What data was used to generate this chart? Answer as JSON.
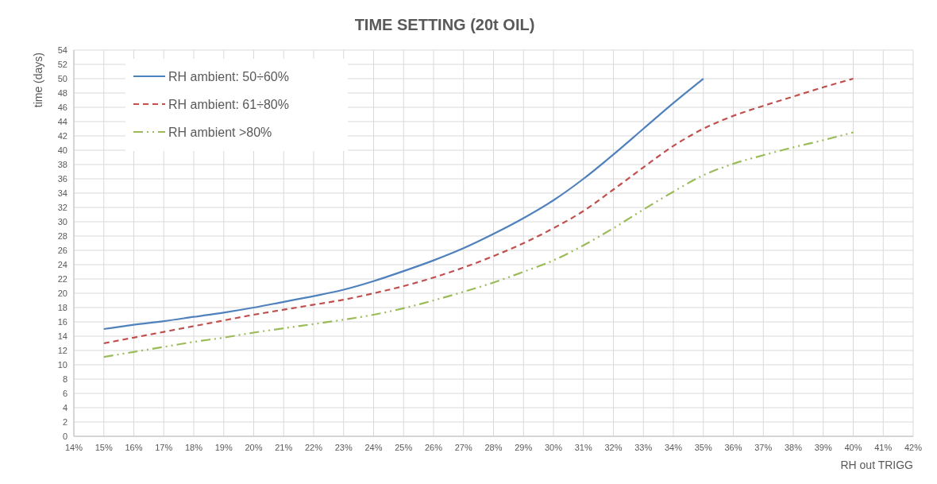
{
  "chart_data": {
    "type": "line",
    "title": "TIME SETTING (20t OIL)",
    "xlabel": "RH out TRIGG",
    "ylabel": "time (days)",
    "xlim": [
      14,
      42
    ],
    "xticks": [
      {
        "value": 14,
        "label": "14%"
      },
      {
        "value": 15,
        "label": "15%"
      },
      {
        "value": 16,
        "label": "16%"
      },
      {
        "value": 17,
        "label": "17%"
      },
      {
        "value": 18,
        "label": "18%"
      },
      {
        "value": 19,
        "label": "19%"
      },
      {
        "value": 20,
        "label": "20%"
      },
      {
        "value": 21,
        "label": "21%"
      },
      {
        "value": 22,
        "label": "22%"
      },
      {
        "value": 23,
        "label": "23%"
      },
      {
        "value": 24,
        "label": "24%"
      },
      {
        "value": 25,
        "label": "25%"
      },
      {
        "value": 26,
        "label": "26%"
      },
      {
        "value": 27,
        "label": "27%"
      },
      {
        "value": 28,
        "label": "28%"
      },
      {
        "value": 29,
        "label": "29%"
      },
      {
        "value": 30,
        "label": "30%"
      },
      {
        "value": 31,
        "label": "31%"
      },
      {
        "value": 32,
        "label": "32%"
      },
      {
        "value": 33,
        "label": "33%"
      },
      {
        "value": 34,
        "label": "34%"
      },
      {
        "value": 35,
        "label": "35%"
      },
      {
        "value": 36,
        "label": "36%"
      },
      {
        "value": 37,
        "label": "37%"
      },
      {
        "value": 38,
        "label": "38%"
      },
      {
        "value": 39,
        "label": "39%"
      },
      {
        "value": 40,
        "label": "40%"
      },
      {
        "value": 41,
        "label": "41%"
      },
      {
        "value": 42,
        "label": "42%"
      }
    ],
    "ylim": [
      0,
      54
    ],
    "yticks": [
      0,
      2,
      4,
      6,
      8,
      10,
      12,
      14,
      16,
      18,
      20,
      22,
      24,
      26,
      28,
      30,
      32,
      34,
      36,
      38,
      40,
      42,
      44,
      46,
      48,
      50,
      52,
      54
    ],
    "grid": true,
    "legend": "top left",
    "marker": "none",
    "series": [
      {
        "name": "RH ambient: 50÷60%",
        "color": "#4f81bd",
        "line_style": "solid",
        "x": [
          15,
          16,
          17,
          18,
          19,
          20,
          21,
          22,
          23,
          24,
          25,
          26,
          27,
          28,
          29,
          30,
          31,
          32,
          33,
          34,
          35
        ],
        "values": [
          15,
          15.6,
          16.1,
          16.7,
          17.3,
          18,
          18.8,
          19.6,
          20.5,
          21.7,
          23.1,
          24.6,
          26.3,
          28.3,
          30.5,
          33,
          36,
          39.4,
          43,
          46.6,
          50
        ]
      },
      {
        "name": "RH ambient: 61÷80%",
        "color": "#c0504d",
        "line_style": "dashed",
        "x": [
          15,
          16,
          17,
          18,
          19,
          20,
          21,
          22,
          23,
          24,
          25,
          26,
          27,
          28,
          29,
          30,
          31,
          32,
          33,
          34,
          35,
          36,
          37,
          38,
          39,
          40
        ],
        "values": [
          13,
          13.8,
          14.6,
          15.4,
          16.2,
          17,
          17.7,
          18.4,
          19.1,
          20,
          21,
          22.2,
          23.6,
          25.2,
          27,
          29.1,
          31.5,
          34.5,
          37.6,
          40.6,
          43,
          44.8,
          46.2,
          47.5,
          48.8,
          50
        ]
      },
      {
        "name": "RH ambient >80%",
        "color": "#9bbb59",
        "line_style": "dashdot",
        "x": [
          15,
          16,
          17,
          18,
          19,
          20,
          21,
          22,
          23,
          24,
          25,
          26,
          27,
          28,
          29,
          30,
          31,
          32,
          33,
          34,
          35,
          36,
          37,
          38,
          39,
          40
        ],
        "values": [
          11.1,
          11.8,
          12.5,
          13.2,
          13.8,
          14.5,
          15.1,
          15.7,
          16.3,
          17,
          17.9,
          19,
          20.2,
          21.5,
          23,
          24.6,
          26.7,
          29.1,
          31.7,
          34.2,
          36.5,
          38.1,
          39.3,
          40.4,
          41.4,
          42.5
        ]
      }
    ]
  }
}
